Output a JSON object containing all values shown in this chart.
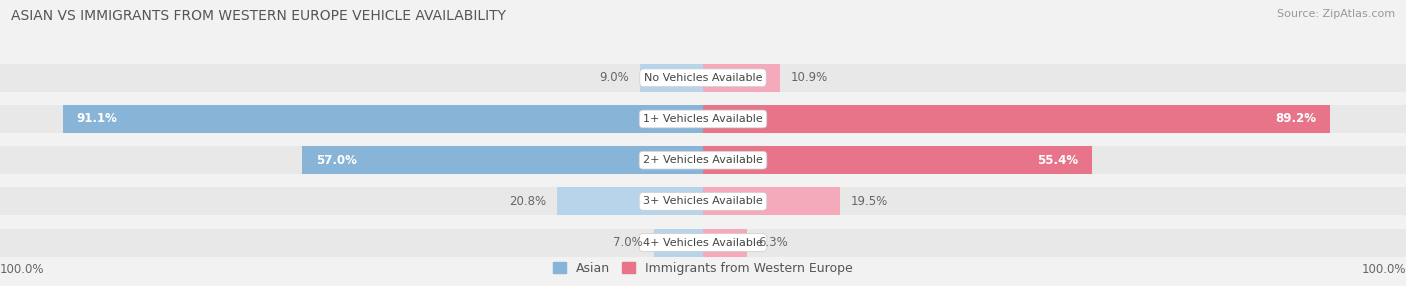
{
  "title": "ASIAN VS IMMIGRANTS FROM WESTERN EUROPE VEHICLE AVAILABILITY",
  "source": "Source: ZipAtlas.com",
  "categories": [
    "No Vehicles Available",
    "1+ Vehicles Available",
    "2+ Vehicles Available",
    "3+ Vehicles Available",
    "4+ Vehicles Available"
  ],
  "asian_values": [
    9.0,
    91.1,
    57.0,
    20.8,
    7.0
  ],
  "western_values": [
    10.9,
    89.2,
    55.4,
    19.5,
    6.3
  ],
  "asian_color": "#88b4d8",
  "western_color": "#e8748a",
  "asian_color_light": "#b8d4ea",
  "western_color_light": "#f4aabb",
  "asian_label": "Asian",
  "western_label": "Immigrants from Western Europe",
  "max_value": 100.0,
  "bg_color": "#f2f2f2",
  "row_bg_color": "#e8e8e8",
  "title_fontsize": 10,
  "source_fontsize": 8,
  "label_fontsize": 8.5,
  "cat_fontsize": 8,
  "legend_fontsize": 9,
  "value_label_inside_color_asian": "white",
  "value_label_outside_color": "#666666",
  "value_label_inside_color_western": "white"
}
